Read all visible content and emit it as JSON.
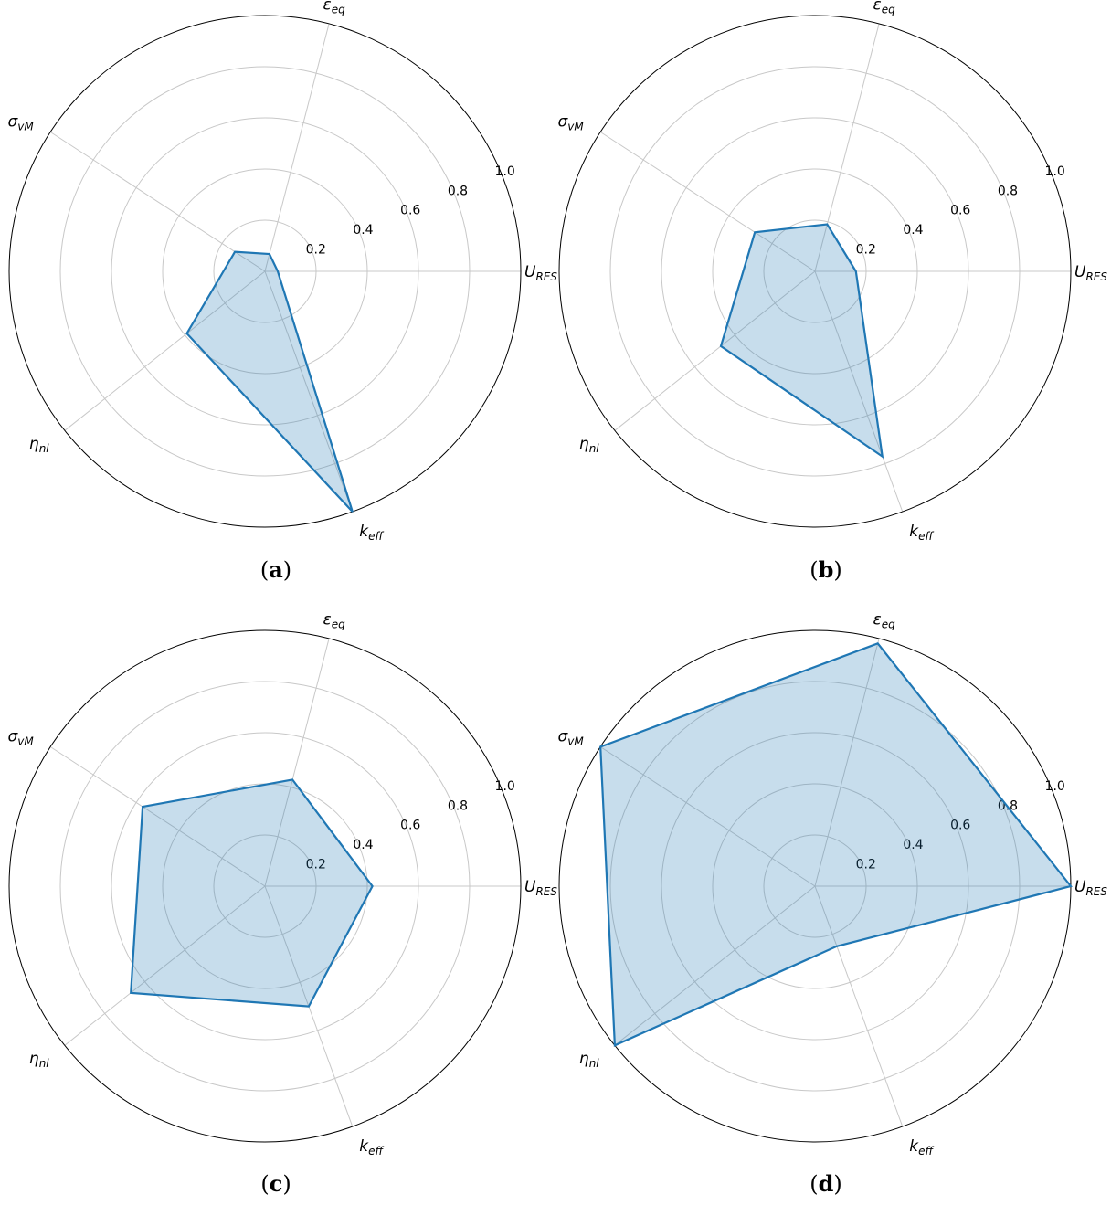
{
  "chart_data": [
    {
      "type": "radar",
      "panel": "a",
      "caption_letter": "a",
      "axes": [
        {
          "main": "U",
          "sub": "RES"
        },
        {
          "main": "ε",
          "sub": "eq"
        },
        {
          "main": "σ",
          "sub": "vM"
        },
        {
          "main": "η",
          "sub": "nl"
        },
        {
          "main": "k",
          "sub": "eff"
        }
      ],
      "values": [
        0.05,
        0.07,
        0.14,
        0.39,
        1.0
      ],
      "rlim": [
        0,
        1.0
      ],
      "rticks": [
        "0.2",
        "0.4",
        "0.6",
        "0.8",
        "1.0"
      ],
      "grid": true
    },
    {
      "type": "radar",
      "panel": "b",
      "caption_letter": "b",
      "axes": [
        {
          "main": "U",
          "sub": "RES"
        },
        {
          "main": "ε",
          "sub": "eq"
        },
        {
          "main": "σ",
          "sub": "vM"
        },
        {
          "main": "η",
          "sub": "nl"
        },
        {
          "main": "k",
          "sub": "eff"
        }
      ],
      "values": [
        0.16,
        0.19,
        0.28,
        0.47,
        0.77
      ],
      "rlim": [
        0,
        1.0
      ],
      "rticks": [
        "0.2",
        "0.4",
        "0.6",
        "0.8",
        "1.0"
      ],
      "grid": true
    },
    {
      "type": "radar",
      "panel": "c",
      "caption_letter": "c",
      "axes": [
        {
          "main": "U",
          "sub": "RES"
        },
        {
          "main": "ε",
          "sub": "eq"
        },
        {
          "main": "σ",
          "sub": "vM"
        },
        {
          "main": "η",
          "sub": "nl"
        },
        {
          "main": "k",
          "sub": "eff"
        }
      ],
      "values": [
        0.42,
        0.43,
        0.57,
        0.67,
        0.5
      ],
      "rlim": [
        0,
        1.0
      ],
      "rticks": [
        "0.2",
        "0.4",
        "0.6",
        "0.8",
        "1.0"
      ],
      "grid": true
    },
    {
      "type": "radar",
      "panel": "d",
      "caption_letter": "d",
      "axes": [
        {
          "main": "U",
          "sub": "RES"
        },
        {
          "main": "ε",
          "sub": "eq"
        },
        {
          "main": "σ",
          "sub": "vM"
        },
        {
          "main": "η",
          "sub": "nl"
        },
        {
          "main": "k",
          "sub": "eff"
        }
      ],
      "values": [
        1.0,
        0.98,
        1.0,
        1.0,
        0.25
      ],
      "rlim": [
        0,
        1.0
      ],
      "rticks": [
        "0.2",
        "0.4",
        "0.6",
        "0.8",
        "1.0"
      ],
      "grid": true
    }
  ],
  "colors": {
    "line": "#1f77b4",
    "fill": "#1f77b4",
    "grid": "#c8c8c8",
    "frame": "#000000"
  }
}
